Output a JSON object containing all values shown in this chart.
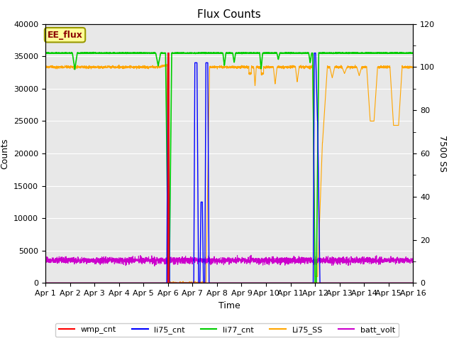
{
  "title": "Flux Counts",
  "xlabel": "Time",
  "ylabel_left": "Counts",
  "ylabel_right": "7500 SS",
  "annotation": "EE_flux",
  "xlim": [
    0,
    15
  ],
  "ylim_left": [
    0,
    40000
  ],
  "ylim_right": [
    0,
    120
  ],
  "xtick_labels": [
    "Apr 1",
    "Apr 2",
    "Apr 3",
    "Apr 4",
    "Apr 5",
    "Apr 6",
    "Apr 7",
    "Apr 8",
    "Apr 9",
    "Apr 10",
    "Apr 11",
    "Apr 12",
    "Apr 13",
    "Apr 14",
    "Apr 15",
    "Apr 16"
  ],
  "ytick_left": [
    0,
    5000,
    10000,
    15000,
    20000,
    25000,
    30000,
    35000,
    40000
  ],
  "ytick_right": [
    0,
    20,
    40,
    60,
    80,
    100,
    120
  ],
  "colors": {
    "wmp_cnt": "#ff0000",
    "li75_cnt": "#0000ff",
    "li77_cnt": "#00cc00",
    "Li75_SS": "#ffa500",
    "batt_volt": "#cc00cc"
  },
  "bg_color": "#e8e8e8",
  "title_fontsize": 11,
  "label_fontsize": 9,
  "tick_fontsize": 8
}
